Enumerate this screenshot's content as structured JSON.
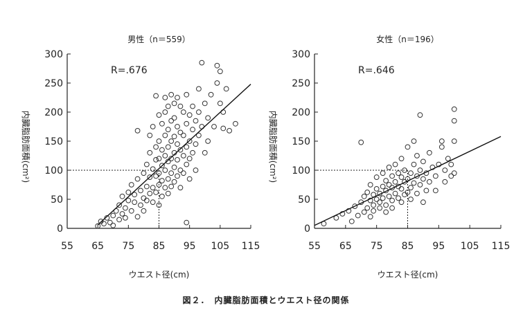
{
  "caption": "図２．　内臓脂肪面積とウエスト径の関係",
  "chart_data": [
    {
      "type": "scatter",
      "title": "男性（n＝559）",
      "annotation": "R=.676",
      "xlabel": "ウエスト径(cm)",
      "ylabel": "内臓脂肪面積(cm²)",
      "xlim": [
        55,
        115
      ],
      "ylim": [
        0,
        300
      ],
      "xticks": [
        55,
        65,
        75,
        85,
        95,
        105,
        115
      ],
      "yticks": [
        0,
        50,
        100,
        150,
        200,
        250,
        300
      ],
      "reference": {
        "y": 100,
        "x": 85
      },
      "regression": {
        "x": [
          65,
          115
        ],
        "y": [
          6,
          248
        ]
      },
      "points": [
        [
          65,
          4
        ],
        [
          66,
          12
        ],
        [
          67,
          8
        ],
        [
          68,
          18
        ],
        [
          69,
          10
        ],
        [
          70,
          22
        ],
        [
          70,
          5
        ],
        [
          71,
          30
        ],
        [
          72,
          15
        ],
        [
          72,
          40
        ],
        [
          73,
          25
        ],
        [
          73,
          55
        ],
        [
          74,
          35
        ],
        [
          74,
          18
        ],
        [
          75,
          48
        ],
        [
          75,
          62
        ],
        [
          76,
          30
        ],
        [
          76,
          75
        ],
        [
          77,
          45
        ],
        [
          77,
          58
        ],
        [
          78,
          20
        ],
        [
          78,
          85
        ],
        [
          78,
          168
        ],
        [
          79,
          65
        ],
        [
          79,
          40
        ],
        [
          80,
          95
        ],
        [
          80,
          52
        ],
        [
          80,
          30
        ],
        [
          81,
          110
        ],
        [
          81,
          72
        ],
        [
          81,
          48
        ],
        [
          82,
          130
        ],
        [
          82,
          88
        ],
        [
          82,
          60
        ],
        [
          82,
          160
        ],
        [
          83,
          175
        ],
        [
          83,
          102
        ],
        [
          83,
          70
        ],
        [
          83,
          45
        ],
        [
          84,
          140
        ],
        [
          84,
          118
        ],
        [
          84,
          90
        ],
        [
          84,
          62
        ],
        [
          84,
          228
        ],
        [
          85,
          195
        ],
        [
          85,
          150
        ],
        [
          85,
          120
        ],
        [
          85,
          95
        ],
        [
          85,
          75
        ],
        [
          85,
          40
        ],
        [
          86,
          180
        ],
        [
          86,
          135
        ],
        [
          86,
          108
        ],
        [
          86,
          82
        ],
        [
          86,
          55
        ],
        [
          87,
          225
        ],
        [
          87,
          200
        ],
        [
          87,
          160
        ],
        [
          87,
          125
        ],
        [
          87,
          100
        ],
        [
          87,
          70
        ],
        [
          88,
          210
        ],
        [
          88,
          170
        ],
        [
          88,
          140
        ],
        [
          88,
          115
        ],
        [
          88,
          85
        ],
        [
          88,
          60
        ],
        [
          89,
          230
        ],
        [
          89,
          185
        ],
        [
          89,
          150
        ],
        [
          89,
          120
        ],
        [
          89,
          95
        ],
        [
          89,
          72
        ],
        [
          90,
          215
        ],
        [
          90,
          190
        ],
        [
          90,
          158
        ],
        [
          90,
          130
        ],
        [
          90,
          105
        ],
        [
          90,
          80
        ],
        [
          91,
          225
        ],
        [
          91,
          175
        ],
        [
          91,
          145
        ],
        [
          91,
          118
        ],
        [
          91,
          90
        ],
        [
          92,
          210
        ],
        [
          92,
          165
        ],
        [
          92,
          135
        ],
        [
          92,
          100
        ],
        [
          92,
          70
        ],
        [
          93,
          200
        ],
        [
          93,
          160
        ],
        [
          93,
          125
        ],
        [
          93,
          95
        ],
        [
          94,
          230
        ],
        [
          94,
          180
        ],
        [
          94,
          140
        ],
        [
          94,
          110
        ],
        [
          94,
          10
        ],
        [
          95,
          195
        ],
        [
          95,
          150
        ],
        [
          95,
          120
        ],
        [
          95,
          85
        ],
        [
          96,
          210
        ],
        [
          96,
          170
        ],
        [
          96,
          130
        ],
        [
          97,
          185
        ],
        [
          97,
          145
        ],
        [
          97,
          100
        ],
        [
          98,
          240
        ],
        [
          98,
          200
        ],
        [
          98,
          160
        ],
        [
          99,
          285
        ],
        [
          99,
          175
        ],
        [
          100,
          215
        ],
        [
          100,
          130
        ],
        [
          101,
          190
        ],
        [
          101,
          150
        ],
        [
          102,
          230
        ],
        [
          103,
          175
        ],
        [
          104,
          280
        ],
        [
          104,
          250
        ],
        [
          105,
          270
        ],
        [
          105,
          215
        ],
        [
          106,
          200
        ],
        [
          106,
          172
        ],
        [
          107,
          240
        ],
        [
          108,
          168
        ],
        [
          110,
          180
        ]
      ]
    },
    {
      "type": "scatter",
      "title": "女性（n＝196）",
      "annotation": "R=.646",
      "xlabel": "ウエスト径(cm)",
      "ylabel": "内臓脂肪面積(cm²)",
      "xlim": [
        55,
        115
      ],
      "ylim": [
        0,
        300
      ],
      "xticks": [
        55,
        65,
        75,
        85,
        95,
        105,
        115
      ],
      "yticks": [
        0,
        50,
        100,
        150,
        200,
        250,
        300
      ],
      "reference": {
        "y": 100,
        "x": 85
      },
      "regression": {
        "x": [
          55,
          115
        ],
        "y": [
          5,
          158
        ]
      },
      "points": [
        [
          58,
          8
        ],
        [
          62,
          18
        ],
        [
          64,
          25
        ],
        [
          66,
          30
        ],
        [
          67,
          12
        ],
        [
          68,
          38
        ],
        [
          69,
          22
        ],
        [
          70,
          148
        ],
        [
          70,
          45
        ],
        [
          71,
          28
        ],
        [
          71,
          55
        ],
        [
          72,
          35
        ],
        [
          72,
          62
        ],
        [
          73,
          20
        ],
        [
          73,
          48
        ],
        [
          73,
          75
        ],
        [
          74,
          40
        ],
        [
          74,
          58
        ],
        [
          74,
          30
        ],
        [
          75,
          50
        ],
        [
          75,
          68
        ],
        [
          75,
          88
        ],
        [
          76,
          35
        ],
        [
          76,
          60
        ],
        [
          76,
          45
        ],
        [
          77,
          72
        ],
        [
          77,
          52
        ],
        [
          77,
          95
        ],
        [
          78,
          40
        ],
        [
          78,
          65
        ],
        [
          78,
          82
        ],
        [
          78,
          28
        ],
        [
          79,
          55
        ],
        [
          79,
          75
        ],
        [
          79,
          105
        ],
        [
          80,
          48
        ],
        [
          80,
          70
        ],
        [
          80,
          90
        ],
        [
          80,
          35
        ],
        [
          81,
          60
        ],
        [
          81,
          80
        ],
        [
          81,
          110
        ],
        [
          82,
          52
        ],
        [
          82,
          72
        ],
        [
          82,
          95
        ],
        [
          83,
          45
        ],
        [
          83,
          68
        ],
        [
          83,
          88
        ],
        [
          83,
          120
        ],
        [
          84,
          58
        ],
        [
          84,
          80
        ],
        [
          84,
          100
        ],
        [
          85,
          62
        ],
        [
          85,
          85
        ],
        [
          85,
          140
        ],
        [
          86,
          70
        ],
        [
          86,
          95
        ],
        [
          86,
          50
        ],
        [
          87,
          78
        ],
        [
          87,
          110
        ],
        [
          87,
          150
        ],
        [
          88,
          60
        ],
        [
          88,
          90
        ],
        [
          88,
          125
        ],
        [
          89,
          195
        ],
        [
          89,
          75
        ],
        [
          89,
          100
        ],
        [
          90,
          85
        ],
        [
          90,
          115
        ],
        [
          90,
          45
        ],
        [
          91,
          65
        ],
        [
          91,
          95
        ],
        [
          92,
          130
        ],
        [
          92,
          80
        ],
        [
          93,
          105
        ],
        [
          94,
          65
        ],
        [
          94,
          90
        ],
        [
          95,
          110
        ],
        [
          96,
          150
        ],
        [
          96,
          140
        ],
        [
          97,
          80
        ],
        [
          97,
          100
        ],
        [
          98,
          120
        ],
        [
          99,
          90
        ],
        [
          99,
          110
        ],
        [
          100,
          205
        ],
        [
          100,
          185
        ],
        [
          100,
          150
        ],
        [
          100,
          95
        ]
      ]
    }
  ]
}
